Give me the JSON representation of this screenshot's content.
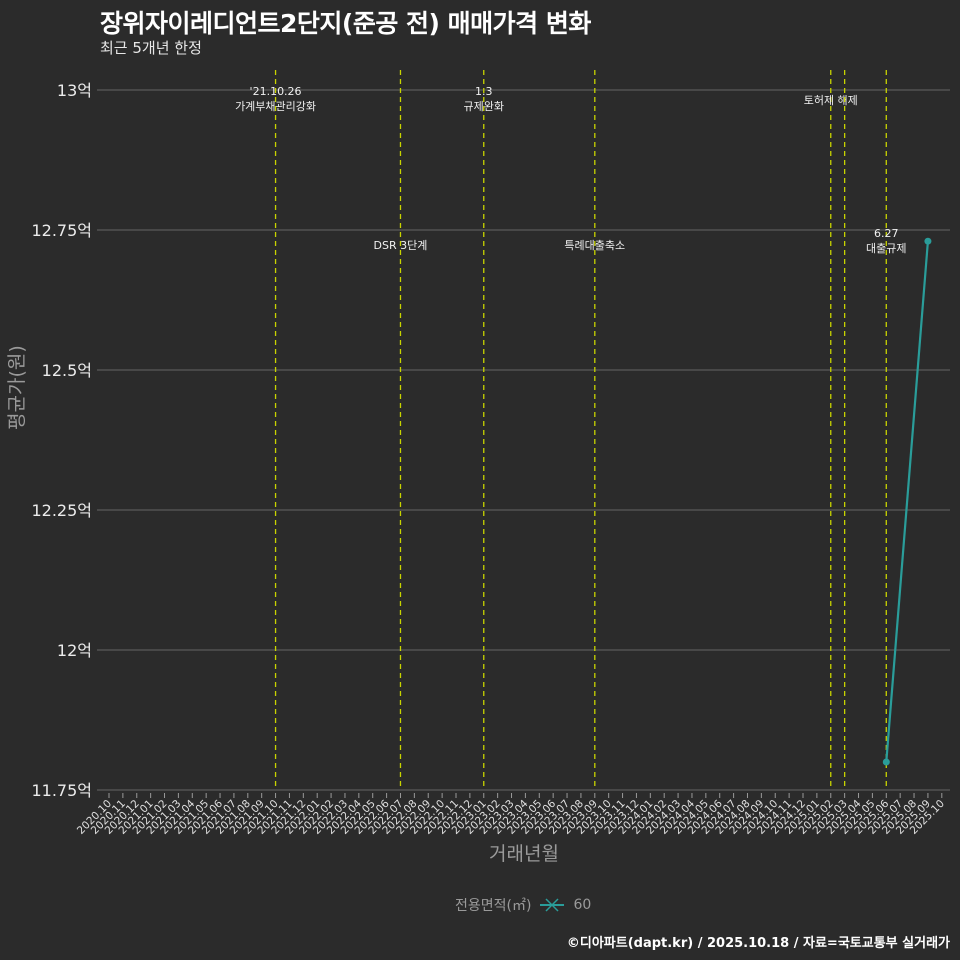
{
  "title": "장위자이레디언트2단지(준공 전) 매매가격 변화",
  "subtitle": "최근 5개년 한정",
  "caption": "©디아파트(dapt.kr) / 2025.10.18 / 자료=국토교통부 실거래가",
  "legend": {
    "title": "전용면적(㎡)",
    "items": [
      {
        "label": "60",
        "color": "#2a9d9a"
      }
    ]
  },
  "colors": {
    "background": "#2b2b2b",
    "grid": "#5a5a5a",
    "line": "#2a9d9a",
    "vline": "#c8d400"
  },
  "chart_data": {
    "type": "line",
    "title": "장위자이레디언트2단지(준공 전) 매매가격 변화",
    "subtitle": "최근 5개년 한정",
    "xlabel": "거래년월",
    "ylabel": "평균가(원)",
    "x_ticks": [
      "2020.10",
      "2020.11",
      "2020.12",
      "2021.01",
      "2021.02",
      "2021.03",
      "2021.04",
      "2021.05",
      "2021.06",
      "2021.07",
      "2021.08",
      "2021.09",
      "2021.10",
      "2021.11",
      "2021.12",
      "2022.01",
      "2022.02",
      "2022.03",
      "2022.04",
      "2022.05",
      "2022.06",
      "2022.07",
      "2022.08",
      "2022.09",
      "2022.10",
      "2022.11",
      "2022.12",
      "2023.01",
      "2023.02",
      "2023.03",
      "2023.04",
      "2023.05",
      "2023.06",
      "2023.07",
      "2023.08",
      "2023.09",
      "2023.10",
      "2023.11",
      "2023.12",
      "2024.01",
      "2024.02",
      "2024.03",
      "2024.04",
      "2024.05",
      "2024.06",
      "2024.07",
      "2024.08",
      "2024.09",
      "2024.10",
      "2024.11",
      "2024.12",
      "2025.01",
      "2025.02",
      "2025.03",
      "2025.04",
      "2025.05",
      "2025.06",
      "2025.07",
      "2025.08",
      "2025.09",
      "2025.10"
    ],
    "y_ticks": [
      "11.75억",
      "12억",
      "12.25억",
      "12.5억",
      "12.75억",
      "13억"
    ],
    "y_tick_values": [
      11.75,
      12.0,
      12.25,
      12.5,
      12.75,
      13.0
    ],
    "ylim": [
      11.75,
      13.0
    ],
    "grid": true,
    "legend_position": "bottom",
    "series": [
      {
        "name": "60",
        "x": [
          "2025.06",
          "2025.09"
        ],
        "values": [
          11.8,
          12.73
        ]
      }
    ],
    "annotations": [
      {
        "x": "2021.10",
        "label": "'21.10.26\n가계부채관리강화",
        "row": "top"
      },
      {
        "x": "2022.07",
        "label": "DSR 3단계",
        "row": "middle"
      },
      {
        "x": "2023.01",
        "label": "1.3\n규제완화",
        "row": "top"
      },
      {
        "x": "2023.09",
        "label": "특례대출축소",
        "row": "middle"
      },
      {
        "x": "2025.02",
        "label": "토허제 해제",
        "row": "top"
      },
      {
        "x": "2025.03",
        "label": "",
        "row": "top"
      },
      {
        "x": "2025.06",
        "label": "6.27\n대출규제",
        "row": "middle"
      }
    ]
  }
}
